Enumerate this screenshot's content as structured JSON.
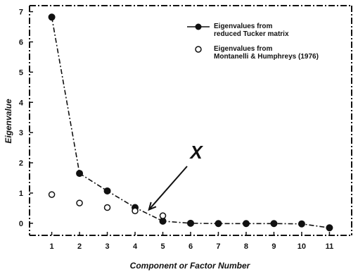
{
  "chart_data": {
    "type": "line",
    "xlabel": "Component or Factor Number",
    "ylabel": "Eigenvalue",
    "x": [
      1,
      2,
      3,
      4,
      5,
      6,
      7,
      8,
      9,
      10,
      11
    ],
    "xlim": [
      0.2,
      11.8
    ],
    "ylim": [
      -0.4,
      7.2
    ],
    "xticks": [
      "1",
      "2",
      "3",
      "4",
      "5",
      "6",
      "7",
      "8",
      "9",
      "10",
      "11"
    ],
    "yticks": [
      "0",
      "1",
      "2",
      "3",
      "4",
      "5",
      "6",
      "7"
    ],
    "grid": false,
    "legend_position": "top-right",
    "series": [
      {
        "name_lines": [
          "Eigenvalues from",
          "reduced Tucker matrix"
        ],
        "marker": "filled-circle",
        "line": "dash-dot",
        "color": "#111111",
        "values": [
          6.82,
          1.65,
          1.07,
          0.52,
          0.07,
          0.0,
          -0.01,
          -0.01,
          -0.01,
          -0.02,
          -0.15
        ]
      },
      {
        "name_lines": [
          "Eigenvalues from",
          "Montanelli & Humphreys (1976)"
        ],
        "marker": "open-circle",
        "line": "none",
        "color": "#111111",
        "x": [
          1,
          2,
          3,
          4,
          5
        ],
        "values": [
          0.95,
          0.67,
          0.52,
          0.41,
          0.25
        ]
      }
    ],
    "annotations": [
      {
        "text": "X",
        "arrow_to": [
          4.5,
          0.45
        ]
      }
    ]
  }
}
